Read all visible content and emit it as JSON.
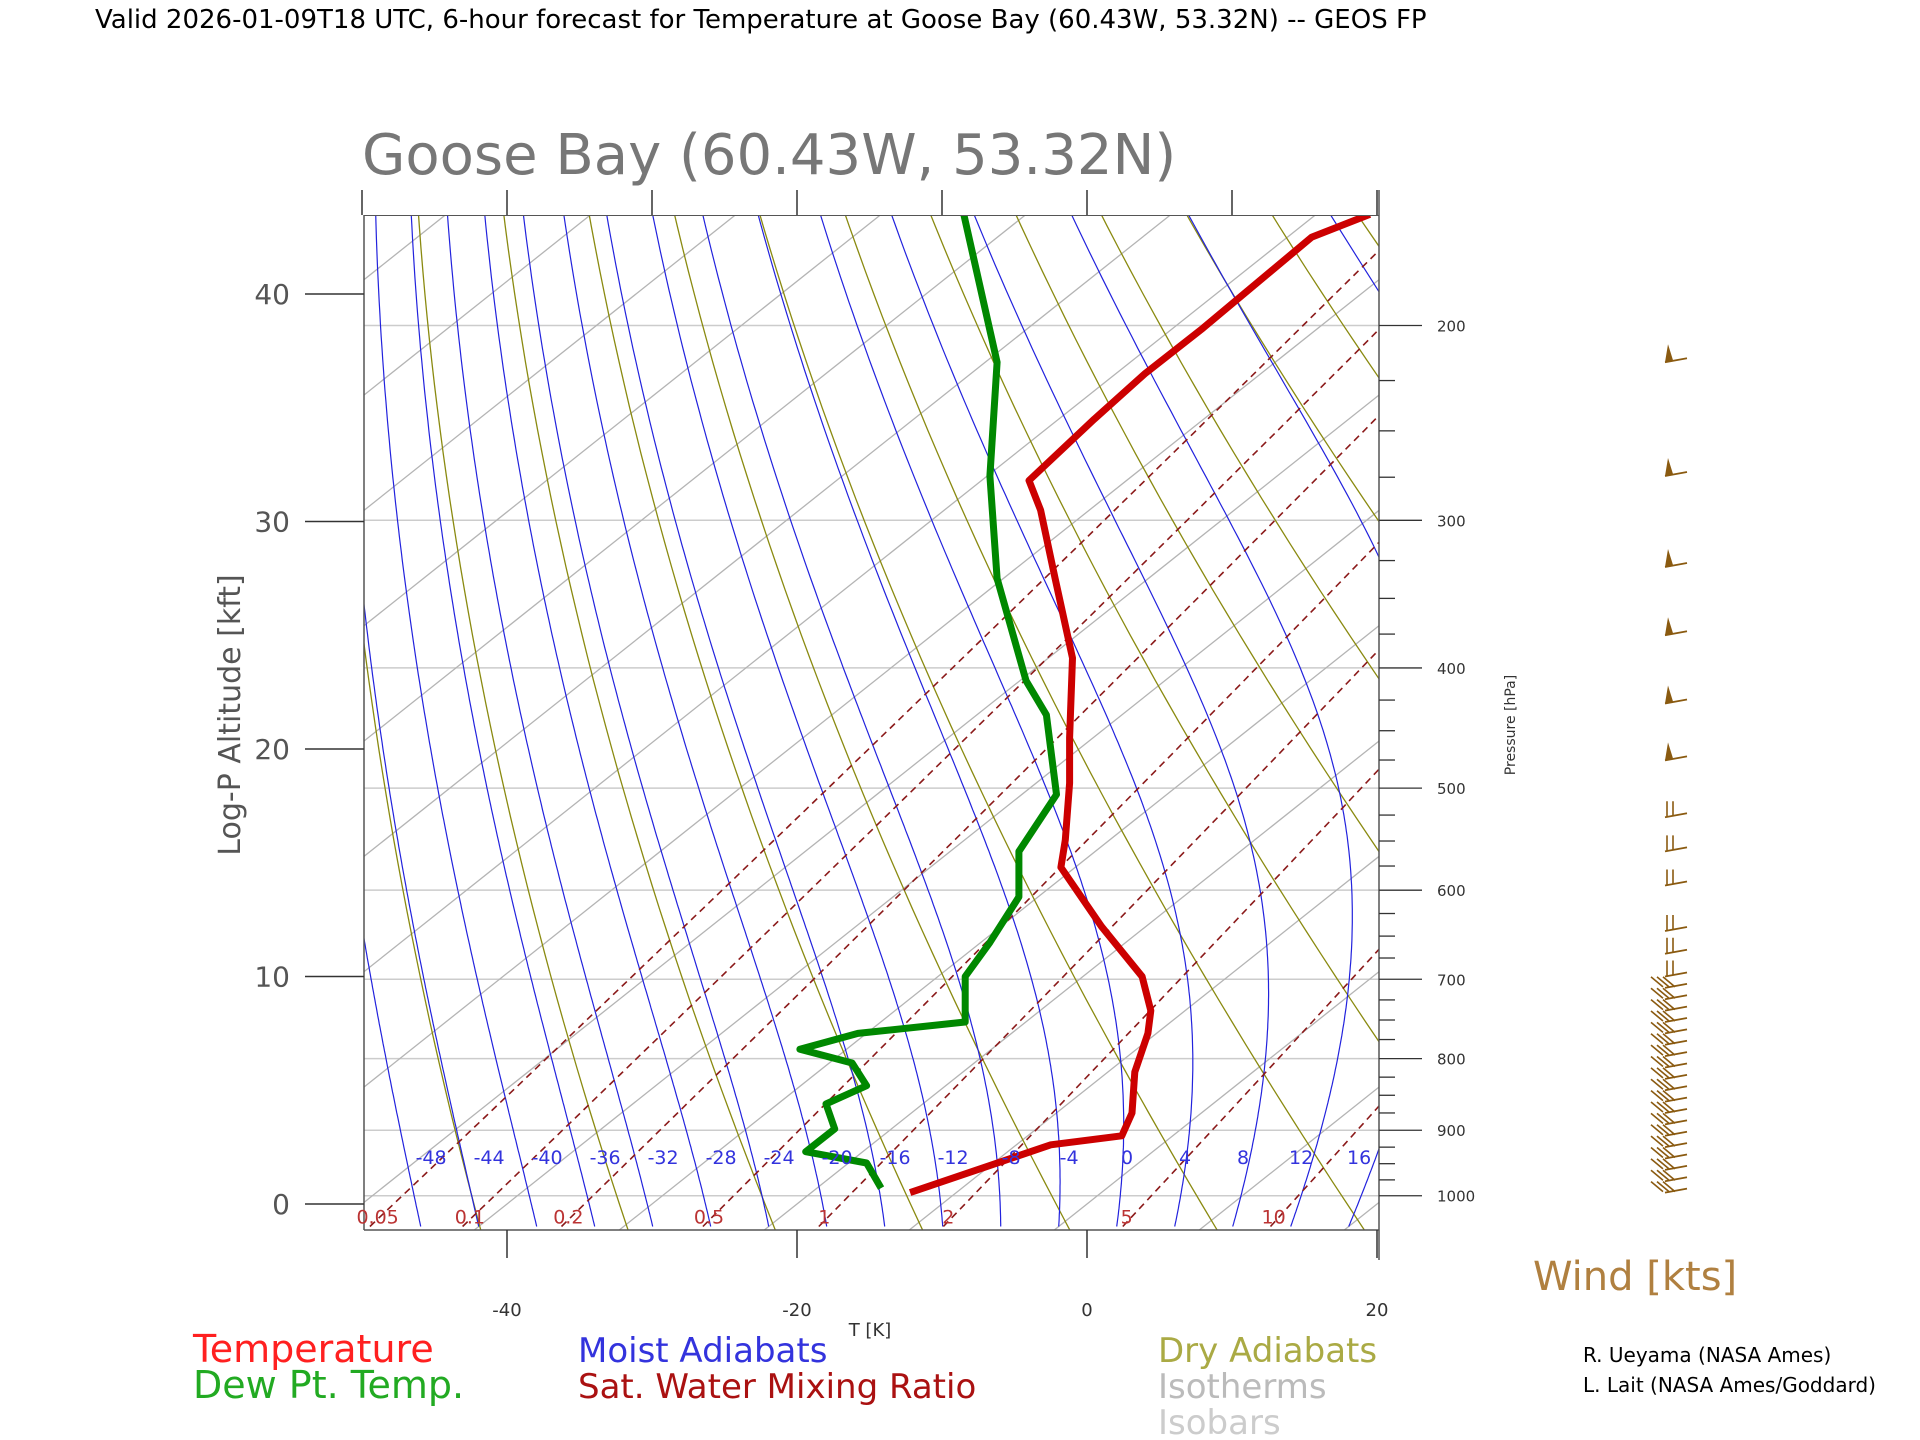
{
  "header": {
    "title": "Valid 2026-01-09T18 UTC, 6-hour forecast for Temperature at Goose Bay (60.43W, 53.32N) -- GEOS FP"
  },
  "chart_data": {
    "type": "line",
    "subtype": "skew-T log-P sounding",
    "title": "Goose Bay (60.43W, 53.32N)",
    "xlabel": "T [K]",
    "ylabel": "Log-P Altitude [kft]",
    "y2label": "Pressure [hPa]",
    "xlim": [
      -50,
      20
    ],
    "ylim": [
      -1.1,
      43.5
    ],
    "x_ticks": [
      "-40",
      "-20",
      "0",
      "20"
    ],
    "x_tick_values": [
      -40,
      -20,
      0,
      20
    ],
    "y_ticks": [
      "0",
      "10",
      "20",
      "30",
      "40"
    ],
    "y_tick_values": [
      0,
      10,
      20,
      30,
      40
    ],
    "pressure_ticks": [
      "1000",
      "900",
      "800",
      "700",
      "600",
      "500",
      "400",
      "300",
      "200"
    ],
    "pressure_tick_values": [
      1000,
      900,
      800,
      700,
      600,
      500,
      400,
      300,
      200
    ],
    "grid": true,
    "moist_adiabat_labels": [
      "-48",
      "-44",
      "-40",
      "-36",
      "-32",
      "-28",
      "-24",
      "-20",
      "-16",
      "-12",
      "-8",
      "-4",
      "0",
      "4",
      "8",
      "12",
      "16"
    ],
    "mixing_ratio_labels": [
      "0.05",
      "0.1",
      "0.2",
      "0.5",
      "1",
      "2",
      "5",
      "10"
    ],
    "series": [
      {
        "name": "Temperature",
        "color": "#cc0000",
        "points": [
          [
            -12.2,
            0.5
          ],
          [
            -2.5,
            2.6
          ],
          [
            2.4,
            3.0
          ],
          [
            3.1,
            4.0
          ],
          [
            3.3,
            5.8
          ],
          [
            4.2,
            7.5
          ],
          [
            4.4,
            8.5
          ],
          [
            3.8,
            10.0
          ],
          [
            1.0,
            12.2
          ],
          [
            -1.8,
            14.8
          ],
          [
            -1.5,
            16.0
          ],
          [
            -1.2,
            18.5
          ],
          [
            -1.2,
            20.5
          ],
          [
            -1.0,
            24.0
          ],
          [
            -2.2,
            27.5
          ],
          [
            -3.2,
            30.5
          ],
          [
            -4.0,
            31.8
          ],
          [
            0.5,
            34.5
          ],
          [
            4.0,
            36.5
          ],
          [
            8.0,
            38.5
          ],
          [
            15.5,
            42.5
          ],
          [
            19.5,
            43.5
          ]
        ]
      },
      {
        "name": "Dew Pt. Temp.",
        "color": "#008800",
        "points": [
          [
            -14.2,
            0.7
          ],
          [
            -15.2,
            1.8
          ],
          [
            -19.4,
            2.3
          ],
          [
            -17.4,
            3.3
          ],
          [
            -18.0,
            4.4
          ],
          [
            -15.2,
            5.2
          ],
          [
            -16.2,
            6.2
          ],
          [
            -19.8,
            6.8
          ],
          [
            -15.8,
            7.5
          ],
          [
            -8.4,
            8.0
          ],
          [
            -8.4,
            10.0
          ],
          [
            -6.7,
            11.5
          ],
          [
            -4.7,
            13.5
          ],
          [
            -4.7,
            15.5
          ],
          [
            -2.1,
            18.0
          ],
          [
            -2.8,
            21.5
          ],
          [
            -4.2,
            23.0
          ],
          [
            -6.2,
            27.5
          ],
          [
            -6.7,
            32.0
          ],
          [
            -6.2,
            37.0
          ],
          [
            -8.5,
            43.5
          ]
        ]
      }
    ],
    "legend": {
      "position": "bottom",
      "entries": [
        {
          "label": "Temperature",
          "color": "#ff2020"
        },
        {
          "label": "Dew Pt. Temp.",
          "color": "#22aa22"
        },
        {
          "label": "Moist Adiabats",
          "color": "#3333dd"
        },
        {
          "label": "Sat. Water Mixing Ratio",
          "color": "#aa1111"
        },
        {
          "label": "Dry Adiabats",
          "color": "#aaaa44"
        },
        {
          "label": "Isotherms",
          "color": "#bbbbbb"
        },
        {
          "label": "Isobars",
          "color": "#cccccc"
        }
      ]
    },
    "wind": {
      "label": "Wind [kts]",
      "color": "#8a5a10",
      "barb_altitudes_kft": [
        0.5,
        1.0,
        1.5,
        2.0,
        2.5,
        3.0,
        3.5,
        4.0,
        4.5,
        5.0,
        5.5,
        6.0,
        6.5,
        7.0,
        7.5,
        8.0,
        8.5,
        9.0,
        9.5,
        10.0,
        11.0,
        12.0,
        14.0,
        15.5,
        17.0,
        19.5,
        22.0,
        25.0,
        28.0,
        32.0,
        37.0
      ]
    },
    "credits": [
      "R. Ueyama (NASA Ames)",
      "L. Lait (NASA Ames/Goddard)"
    ]
  }
}
